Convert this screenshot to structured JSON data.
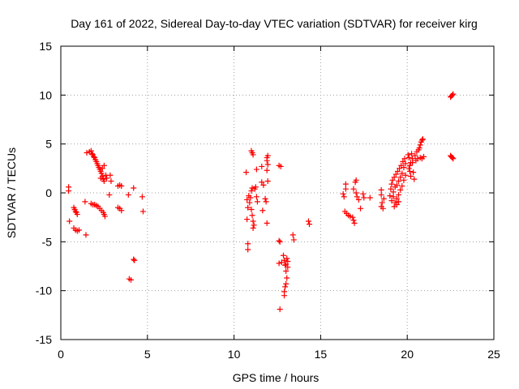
{
  "chart_data": {
    "type": "scatter",
    "title": "Day 161 of 2022, Sidereal Day-to-day VTEC variation (SDTVAR) for receiver kirg",
    "xlabel": "GPS time / hours",
    "ylabel": "SDTVAR / TECUs",
    "xlim": [
      0,
      25
    ],
    "ylim": [
      -15,
      15
    ],
    "xticks": [
      0,
      5,
      10,
      15,
      20,
      25
    ],
    "yticks": [
      -15,
      -10,
      -5,
      0,
      5,
      10,
      15
    ],
    "grid": true,
    "marker": "+",
    "color": "#ff0000",
    "series": [
      {
        "name": "SDTVAR",
        "points": [
          [
            0.45,
            0.6
          ],
          [
            0.45,
            0.2
          ],
          [
            0.5,
            -2.9
          ],
          [
            0.75,
            -1.5
          ],
          [
            0.8,
            -1.7
          ],
          [
            0.85,
            -1.9
          ],
          [
            0.9,
            -2.0
          ],
          [
            0.95,
            -2.2
          ],
          [
            0.75,
            -3.6
          ],
          [
            0.85,
            -3.8
          ],
          [
            0.95,
            -3.9
          ],
          [
            1.05,
            -3.8
          ],
          [
            1.4,
            -0.9
          ],
          [
            1.45,
            -4.3
          ],
          [
            1.5,
            4.1
          ],
          [
            1.65,
            4.2
          ],
          [
            1.75,
            4.3
          ],
          [
            1.8,
            4.0
          ],
          [
            1.85,
            3.9
          ],
          [
            1.9,
            3.7
          ],
          [
            1.95,
            3.6
          ],
          [
            2.0,
            3.4
          ],
          [
            2.05,
            3.2
          ],
          [
            2.1,
            3.0
          ],
          [
            2.15,
            2.8
          ],
          [
            2.2,
            2.6
          ],
          [
            2.25,
            2.4
          ],
          [
            2.3,
            2.2
          ],
          [
            2.35,
            2.0
          ],
          [
            2.4,
            1.7
          ],
          [
            2.45,
            1.4
          ],
          [
            2.5,
            1.2
          ],
          [
            2.3,
            1.5
          ],
          [
            2.4,
            2.5
          ],
          [
            2.5,
            2.8
          ],
          [
            2.6,
            1.8
          ],
          [
            2.65,
            1.5
          ],
          [
            1.75,
            -1.1
          ],
          [
            1.85,
            -1.2
          ],
          [
            1.95,
            -1.2
          ],
          [
            2.05,
            -1.3
          ],
          [
            2.15,
            -1.4
          ],
          [
            2.25,
            -1.6
          ],
          [
            2.35,
            -1.8
          ],
          [
            2.45,
            -2.0
          ],
          [
            2.5,
            -2.2
          ],
          [
            2.55,
            -2.4
          ],
          [
            2.85,
            1.8
          ],
          [
            2.9,
            1.2
          ],
          [
            2.8,
            -0.2
          ],
          [
            3.3,
            0.7
          ],
          [
            3.4,
            0.8
          ],
          [
            3.5,
            0.7
          ],
          [
            3.3,
            -1.5
          ],
          [
            3.4,
            -1.6
          ],
          [
            3.5,
            -1.8
          ],
          [
            3.9,
            -0.2
          ],
          [
            3.95,
            -8.8
          ],
          [
            4.05,
            -8.9
          ],
          [
            4.2,
            -6.8
          ],
          [
            4.25,
            -6.9
          ],
          [
            4.2,
            0.5
          ],
          [
            4.7,
            -0.4
          ],
          [
            4.75,
            -1.9
          ],
          [
            10.7,
            2.1
          ],
          [
            10.75,
            -0.7
          ],
          [
            10.8,
            -1.5
          ],
          [
            10.75,
            -2.7
          ],
          [
            10.8,
            -5.2
          ],
          [
            10.8,
            -5.8
          ],
          [
            10.85,
            -0.3
          ],
          [
            10.9,
            -1.0
          ],
          [
            10.95,
            -0.5
          ],
          [
            11.0,
            0.2
          ],
          [
            11.05,
            0.5
          ],
          [
            11.0,
            -1.7
          ],
          [
            11.05,
            -2.3
          ],
          [
            11.1,
            -2.9
          ],
          [
            11.15,
            -3.3
          ],
          [
            11.1,
            -3.6
          ],
          [
            11.0,
            4.3
          ],
          [
            11.05,
            4.1
          ],
          [
            11.1,
            3.9
          ],
          [
            11.2,
            0.4
          ],
          [
            11.25,
            0.6
          ],
          [
            11.3,
            -0.4
          ],
          [
            11.35,
            -0.9
          ],
          [
            11.3,
            2.4
          ],
          [
            11.6,
            2.7
          ],
          [
            11.6,
            1.1
          ],
          [
            11.65,
            -1.8
          ],
          [
            11.7,
            0.8
          ],
          [
            11.8,
            -0.6
          ],
          [
            11.85,
            -0.9
          ],
          [
            11.9,
            3.6
          ],
          [
            11.95,
            3.8
          ],
          [
            11.9,
            3.3
          ],
          [
            11.95,
            2.9
          ],
          [
            11.9,
            2.3
          ],
          [
            11.95,
            1.2
          ],
          [
            11.9,
            -3.1
          ],
          [
            12.6,
            2.8
          ],
          [
            12.7,
            2.7
          ],
          [
            12.6,
            -4.9
          ],
          [
            12.65,
            -5.0
          ],
          [
            12.6,
            -7.2
          ],
          [
            12.65,
            -11.9
          ],
          [
            12.75,
            -7.1
          ],
          [
            12.85,
            -6.4
          ],
          [
            12.9,
            -6.9
          ],
          [
            12.95,
            -7.4
          ],
          [
            13.0,
            -8.0
          ],
          [
            13.05,
            -8.7
          ],
          [
            13.0,
            -9.3
          ],
          [
            12.95,
            -9.6
          ],
          [
            12.9,
            -10.1
          ],
          [
            12.9,
            -10.5
          ],
          [
            13.0,
            -7.3
          ],
          [
            13.05,
            -6.7
          ],
          [
            13.1,
            -7.0
          ],
          [
            13.1,
            -7.6
          ],
          [
            13.4,
            -4.3
          ],
          [
            13.45,
            -4.8
          ],
          [
            14.3,
            -2.9
          ],
          [
            14.35,
            -3.2
          ],
          [
            16.3,
            -0.1
          ],
          [
            16.35,
            -0.4
          ],
          [
            16.45,
            0.4
          ],
          [
            16.45,
            0.9
          ],
          [
            16.4,
            -1.9
          ],
          [
            16.5,
            -2.1
          ],
          [
            16.6,
            -2.3
          ],
          [
            16.7,
            -2.4
          ],
          [
            16.85,
            -2.5
          ],
          [
            16.9,
            -2.8
          ],
          [
            16.95,
            -3.1
          ],
          [
            16.9,
            0.4
          ],
          [
            17.0,
            1.1
          ],
          [
            17.05,
            1.3
          ],
          [
            17.05,
            0.0
          ],
          [
            17.1,
            -0.4
          ],
          [
            17.2,
            -0.7
          ],
          [
            17.3,
            -1.6
          ],
          [
            17.45,
            -0.1
          ],
          [
            17.5,
            -0.5
          ],
          [
            17.85,
            -0.5
          ],
          [
            18.5,
            0.3
          ],
          [
            18.5,
            -0.2
          ],
          [
            18.55,
            -1.0
          ],
          [
            18.5,
            -1.4
          ],
          [
            18.6,
            -1.6
          ],
          [
            18.65,
            -0.6
          ],
          [
            19.0,
            -0.3
          ],
          [
            19.05,
            0.4
          ],
          [
            19.1,
            0.9
          ],
          [
            19.1,
            -0.8
          ],
          [
            19.15,
            1.3
          ],
          [
            19.2,
            0.1
          ],
          [
            19.2,
            -0.4
          ],
          [
            19.25,
            1.6
          ],
          [
            19.3,
            0.6
          ],
          [
            19.3,
            -1.0
          ],
          [
            19.35,
            1.9
          ],
          [
            19.4,
            0.8
          ],
          [
            19.4,
            -0.6
          ],
          [
            19.45,
            2.2
          ],
          [
            19.5,
            1.2
          ],
          [
            19.5,
            -0.2
          ],
          [
            19.55,
            2.5
          ],
          [
            19.6,
            1.6
          ],
          [
            19.6,
            0.3
          ],
          [
            19.65,
            2.8
          ],
          [
            19.7,
            2.0
          ],
          [
            19.7,
            0.7
          ],
          [
            19.75,
            3.2
          ],
          [
            19.8,
            2.6
          ],
          [
            19.8,
            1.3
          ],
          [
            19.85,
            3.5
          ],
          [
            19.9,
            3.0
          ],
          [
            19.9,
            1.8
          ],
          [
            19.4,
            -1.2
          ],
          [
            19.25,
            -1.4
          ],
          [
            19.5,
            -0.9
          ],
          [
            20.05,
            3.9
          ],
          [
            20.1,
            3.6
          ],
          [
            20.15,
            2.8
          ],
          [
            20.15,
            2.2
          ],
          [
            20.2,
            1.7
          ],
          [
            20.25,
            4.0
          ],
          [
            20.3,
            3.5
          ],
          [
            20.3,
            3.1
          ],
          [
            20.35,
            2.1
          ],
          [
            20.4,
            1.4
          ],
          [
            20.45,
            3.8
          ],
          [
            20.5,
            3.3
          ],
          [
            20.55,
            4.2
          ],
          [
            20.6,
            3.5
          ],
          [
            20.65,
            4.4
          ],
          [
            20.7,
            4.6
          ],
          [
            20.75,
            4.9
          ],
          [
            20.8,
            5.2
          ],
          [
            20.85,
            5.4
          ],
          [
            20.9,
            5.5
          ],
          [
            20.75,
            3.6
          ],
          [
            20.85,
            3.5
          ],
          [
            20.95,
            3.7
          ],
          [
            20.1,
            2.5
          ],
          [
            20.2,
            3.1
          ],
          [
            22.5,
            9.8
          ],
          [
            22.55,
            9.9
          ],
          [
            22.6,
            10.0
          ],
          [
            22.65,
            10.1
          ],
          [
            22.5,
            3.8
          ],
          [
            22.55,
            3.7
          ],
          [
            22.6,
            3.6
          ],
          [
            22.65,
            3.5
          ]
        ]
      }
    ]
  }
}
